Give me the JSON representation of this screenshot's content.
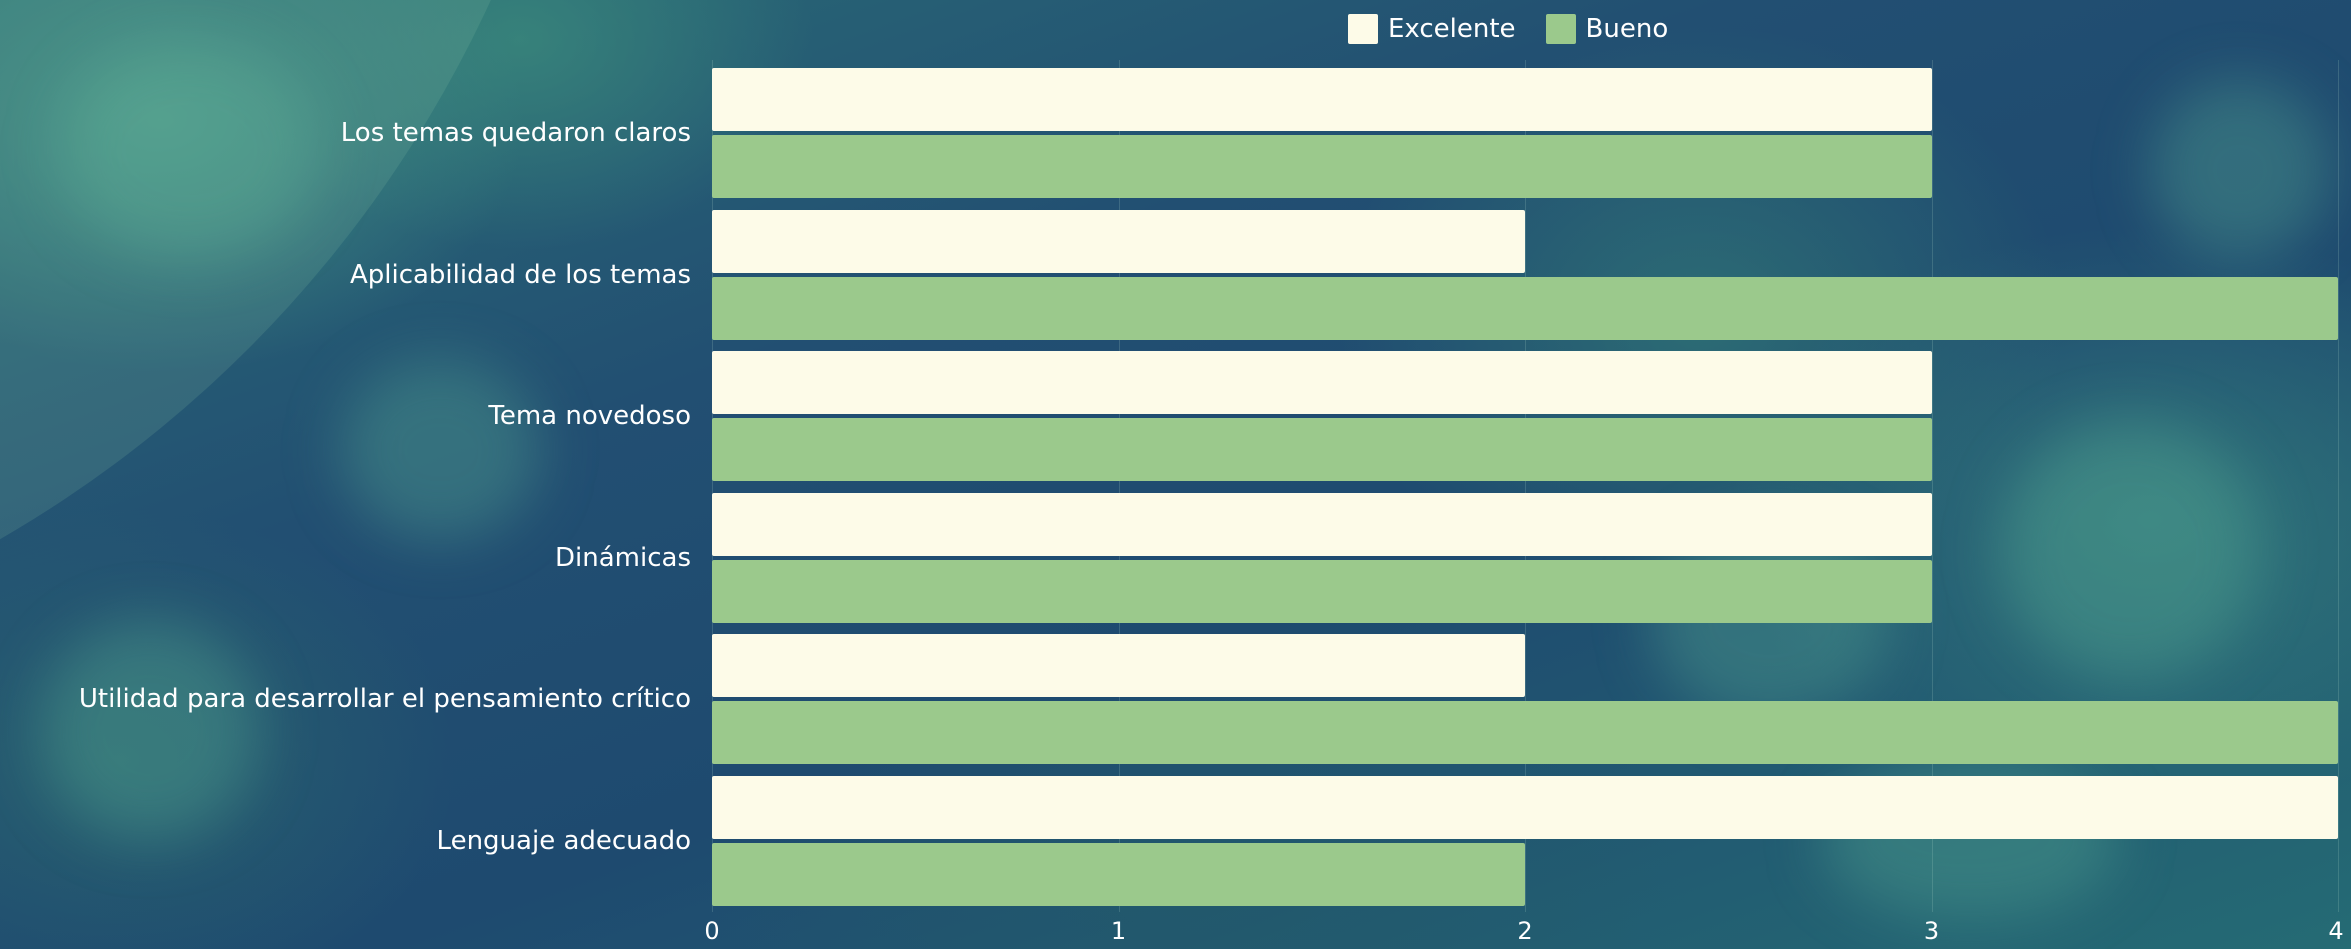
{
  "chart_data": {
    "type": "bar",
    "orientation": "horizontal",
    "categories": [
      "Los temas quedaron claros",
      "Aplicabilidad de los temas",
      "Tema novedoso",
      "Dinámicas",
      "Utilidad para desarrollar el pensamiento crítico",
      "Lenguaje adecuado"
    ],
    "series": [
      {
        "name": "Excelente",
        "color": "#fdfbe8",
        "values": [
          3,
          2,
          3,
          3,
          2,
          4
        ]
      },
      {
        "name": "Bueno",
        "color": "#9bc98c",
        "values": [
          3,
          4,
          3,
          3,
          4,
          2
        ]
      }
    ],
    "xlim": [
      0,
      4
    ],
    "xticks": [
      "0",
      "1",
      "2",
      "3",
      "4"
    ],
    "grid": true,
    "legend_position": "top"
  }
}
